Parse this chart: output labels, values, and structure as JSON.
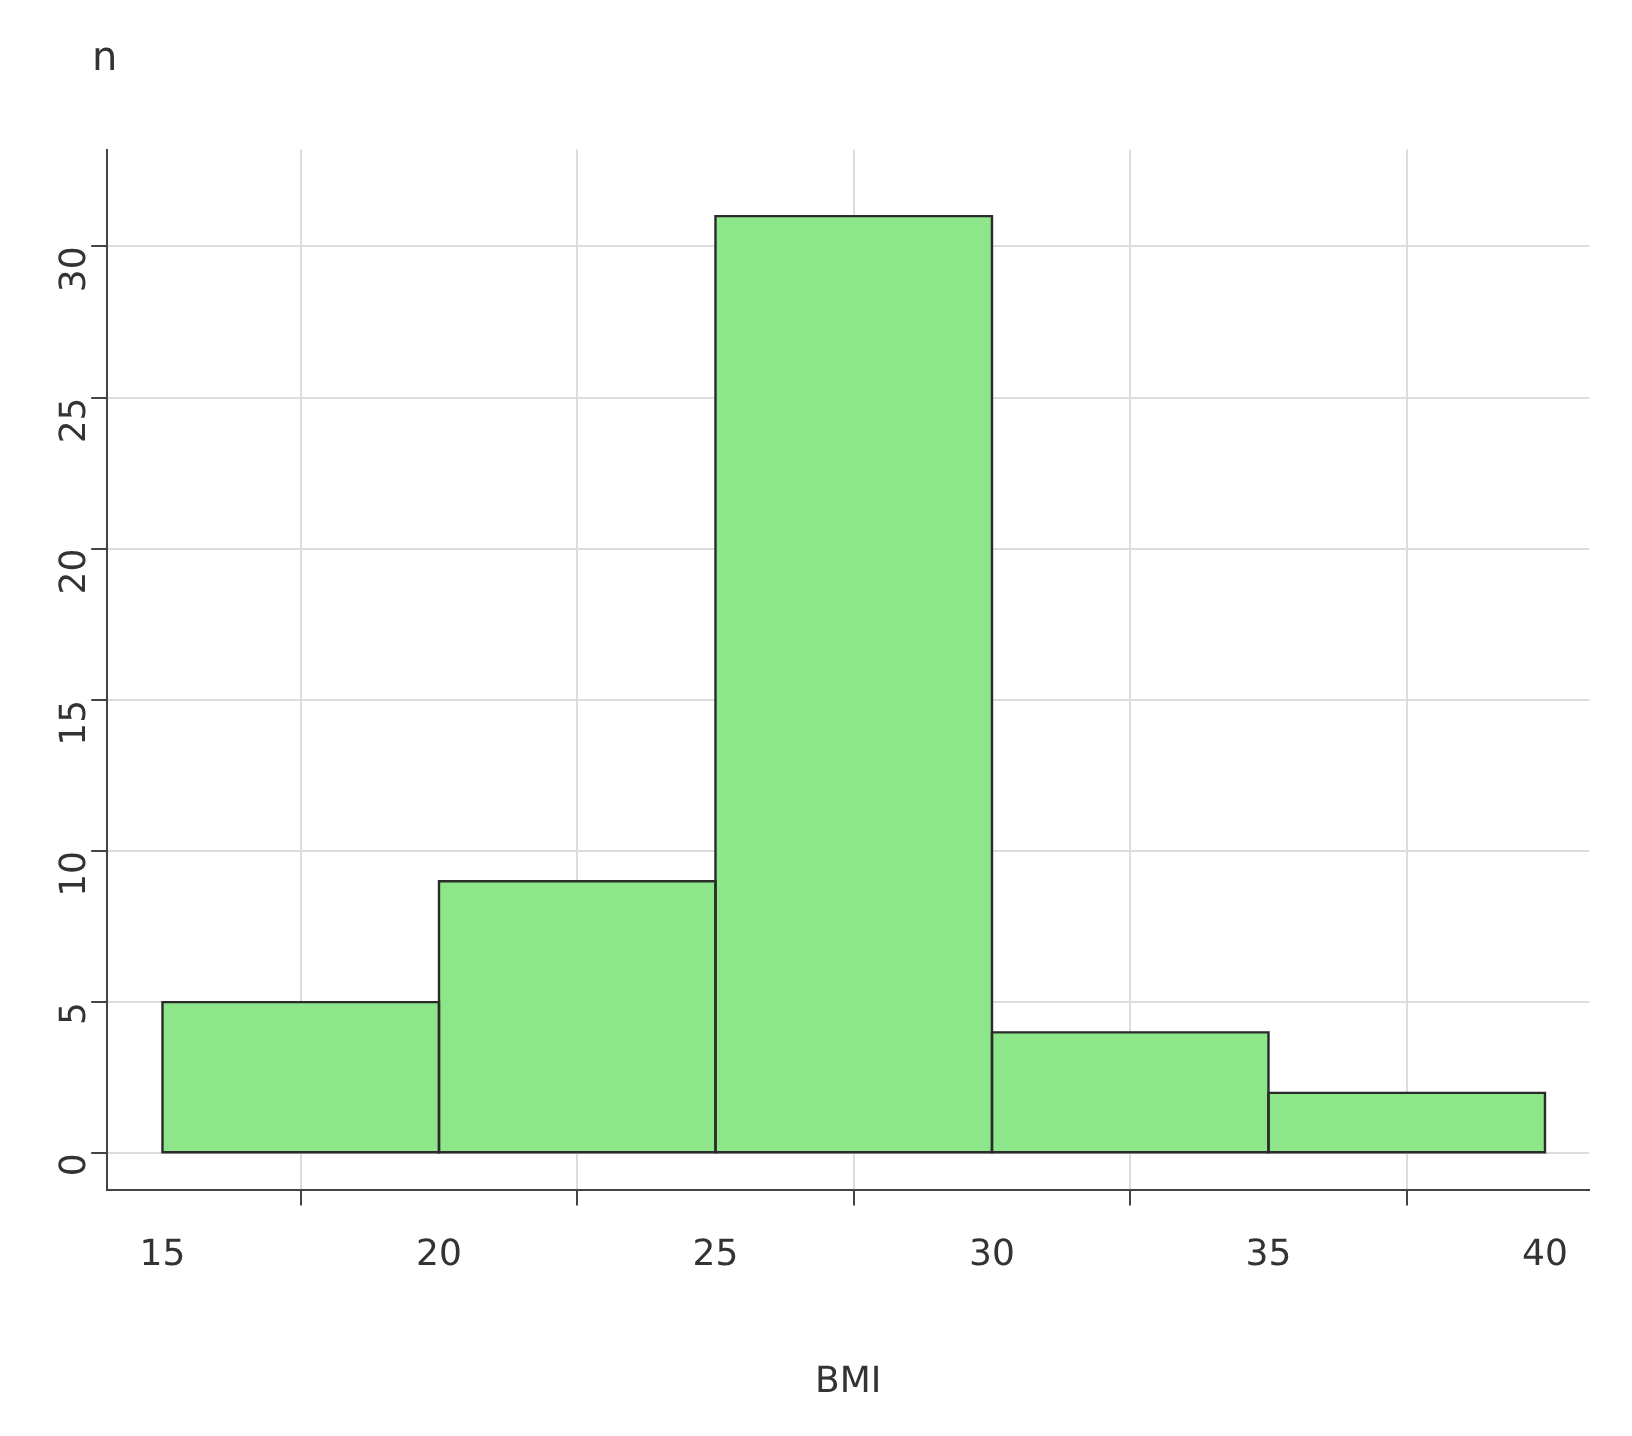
{
  "chart_data": {
    "type": "histogram",
    "xlabel": "BMI",
    "ylabel": "n",
    "bins": [
      15,
      20,
      25,
      30,
      35,
      40
    ],
    "values": [
      5,
      9,
      31,
      4,
      2
    ],
    "color": "#8ee68a",
    "xlim": [
      14,
      40.8
    ],
    "xticks": [
      15,
      20,
      25,
      30,
      35,
      40
    ],
    "ylim": [
      -1.2,
      33.2
    ],
    "yticks": [
      0,
      5,
      10,
      15,
      20,
      25,
      30
    ],
    "grid": true,
    "legend": false
  }
}
